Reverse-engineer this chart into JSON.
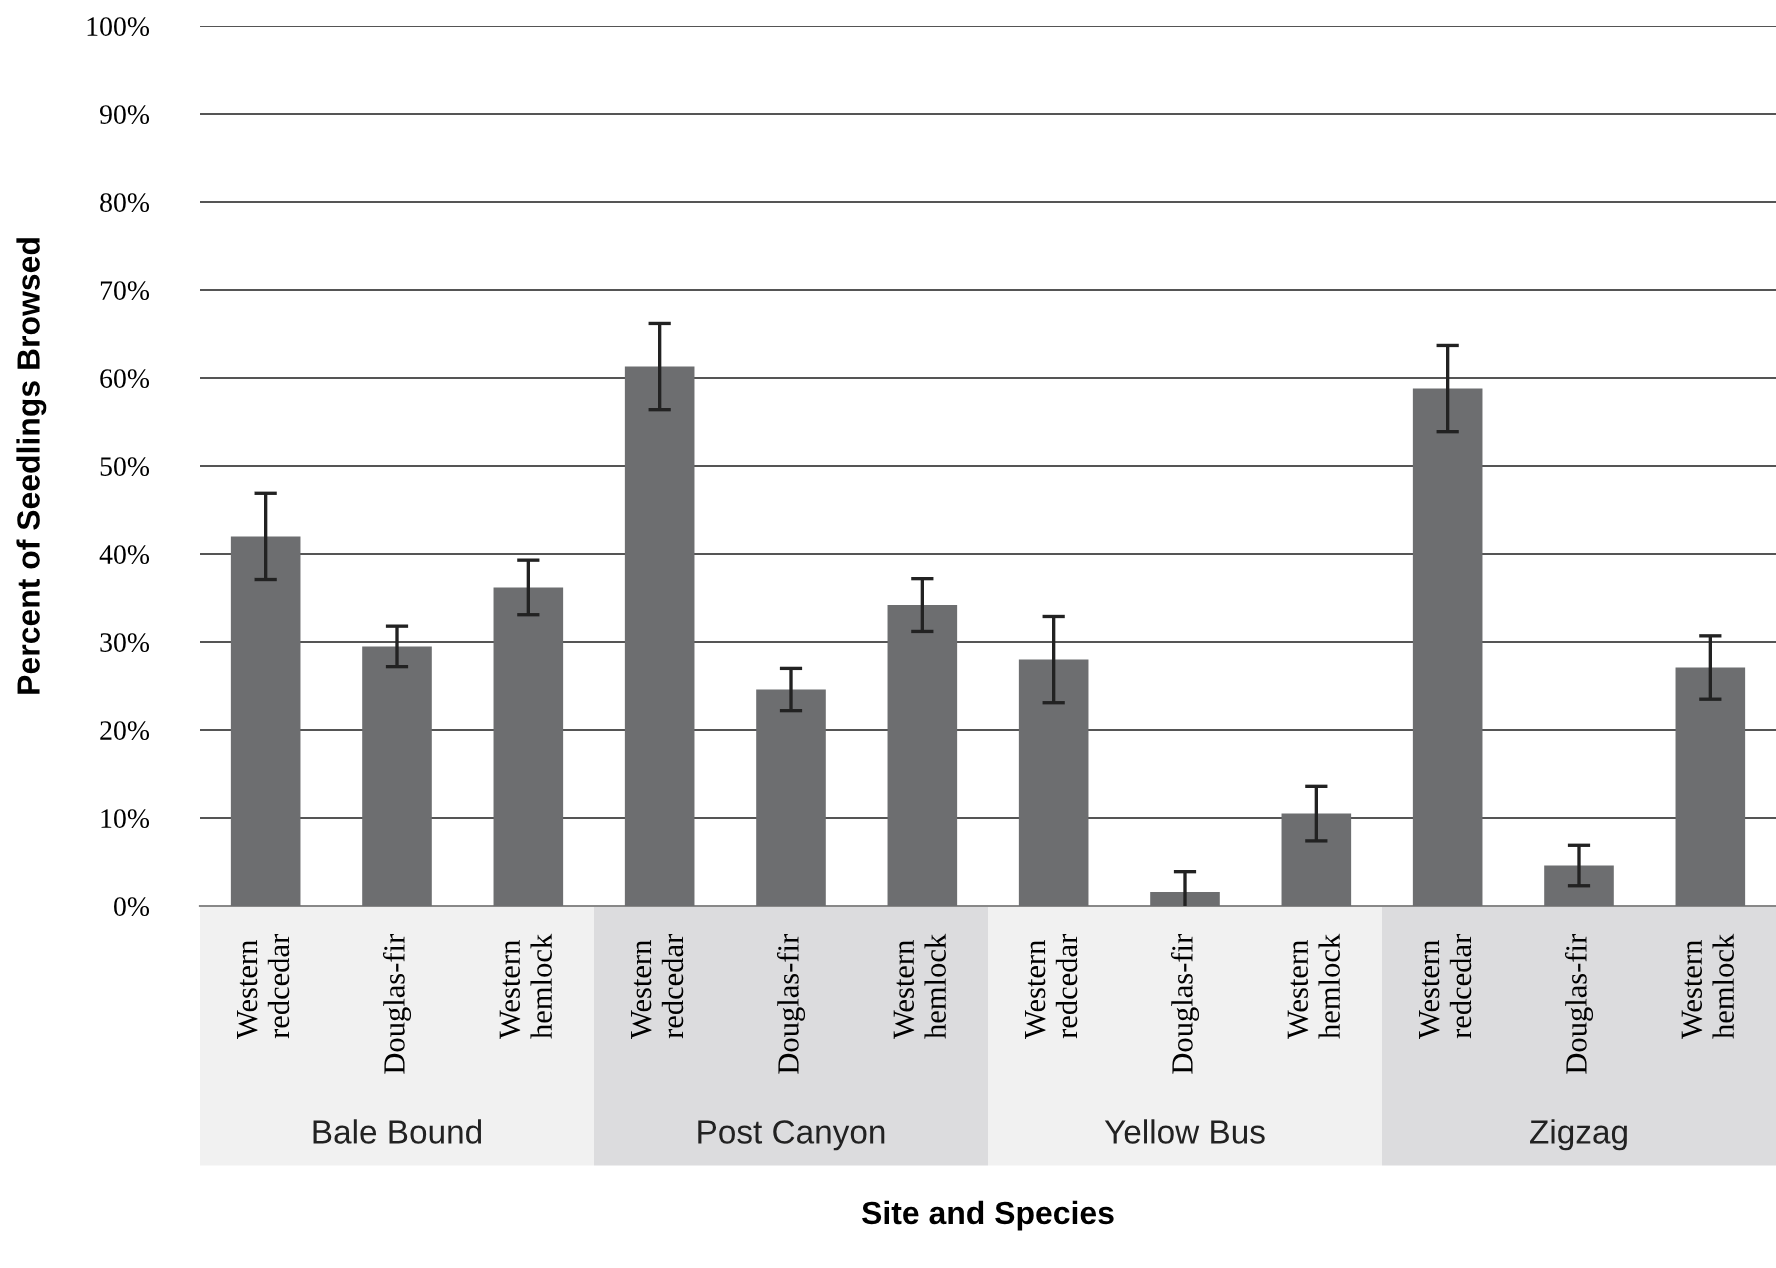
{
  "chart_data": {
    "type": "bar",
    "xlabel": "Site and Species",
    "ylabel": "Percent of Seedlings Browsed",
    "categories": [
      "Western\nredcedar",
      "Douglas-fir",
      "Western\nhemlock",
      "Western\nredcedar",
      "Douglas-fir",
      "Western\nhemlock",
      "Western\nredcedar",
      "Douglas-fir",
      "Western\nhemlock",
      "Western\nredcedar",
      "Douglas-fir",
      "Western\nhemlock"
    ],
    "values": [
      42.0,
      29.5,
      36.2,
      61.3,
      24.6,
      34.2,
      28.0,
      1.6,
      10.5,
      58.8,
      4.6,
      27.1
    ],
    "errors": [
      4.9,
      2.3,
      3.1,
      4.9,
      2.4,
      3.0,
      4.9,
      2.3,
      3.1,
      4.9,
      2.3,
      3.6
    ],
    "color": "#6d6e70",
    "annotations": [
      "Bale Bound",
      "Post Canyon",
      "Yellow Bus",
      "Zigzag"
    ],
    "ylim": [
      0,
      100
    ],
    "yticks": [
      {
        "value": 0,
        "label": "0%"
      },
      {
        "value": 10,
        "label": "10%"
      },
      {
        "value": 20,
        "label": "20%"
      },
      {
        "value": 30,
        "label": "30%"
      },
      {
        "value": 40,
        "label": "40%"
      },
      {
        "value": 50,
        "label": "50%"
      },
      {
        "value": 60,
        "label": "60%"
      },
      {
        "value": 70,
        "label": "70%"
      },
      {
        "value": 80,
        "label": "80%"
      },
      {
        "value": 90,
        "label": "90%"
      },
      {
        "value": 100,
        "label": "100%"
      }
    ],
    "grid": "y"
  }
}
